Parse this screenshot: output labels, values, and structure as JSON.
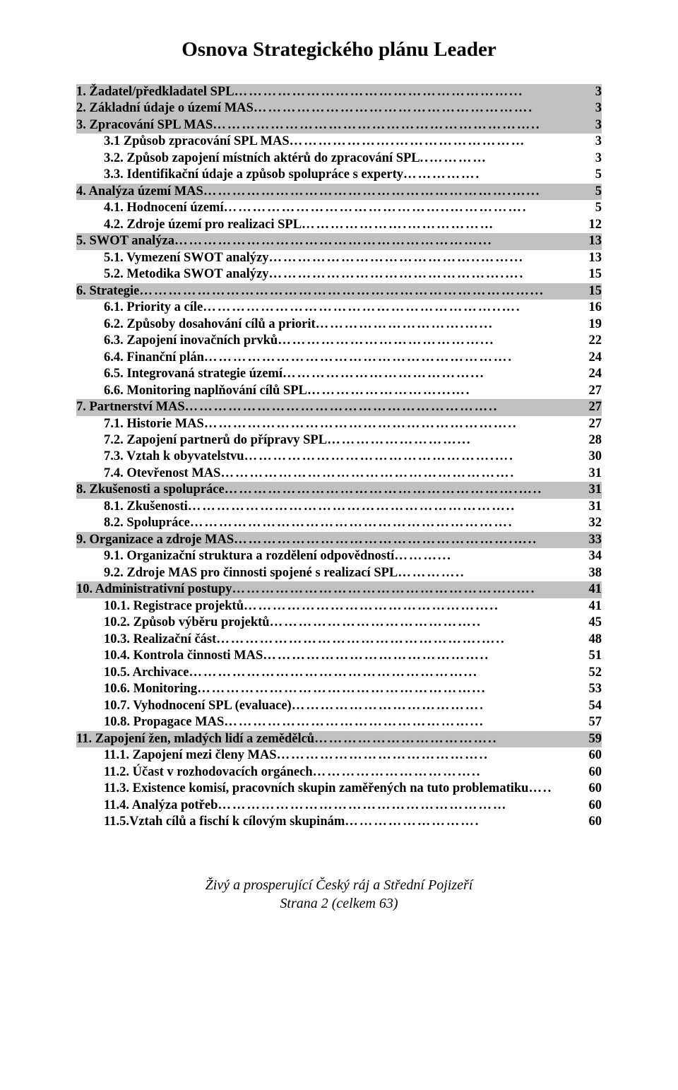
{
  "title": "Osnova Strategického plánu Leader",
  "toc": [
    {
      "level": "top",
      "label": "1. Žadatel/předkladatel SPL",
      "page": "3",
      "leader": "…………………………………………………..."
    },
    {
      "level": "top",
      "label": "2. Základní údaje o území MAS",
      "page": "3",
      "leader": "…………………………………………………."
    },
    {
      "level": "top",
      "label": "3. Zpracování SPL MAS",
      "page": "3",
      "leader": "………………………………………………………….."
    },
    {
      "level": "sub",
      "label": "3.1 Způsob zpracování SPL MAS",
      "page": "3",
      "leader": "………………….………………………"
    },
    {
      "level": "sub",
      "label": "3.2. Způsob zapojení místních aktérů do zpracování SPL",
      "page": "3",
      "leader": "..…………"
    },
    {
      "level": "sub",
      "label": "3.3. Identifikační údaje a způsob spolupráce s experty",
      "page": "5",
      "leader": "……………."
    },
    {
      "level": "top",
      "label": "4. Analýza území MAS",
      "page": "5",
      "leader": "……………………………………………………….…..."
    },
    {
      "level": "sub",
      "label": "4.1. Hodnocení území",
      "page": "5",
      "leader": "………………………………………..……………."
    },
    {
      "level": "sub",
      "label": "4.2. Zdroje území pro realizaci SPL",
      "page": "12",
      "leader": "………………….………………"
    },
    {
      "level": "top",
      "label": "5. SWOT analýza",
      "page": "13",
      "leader": "………………………………………………………..."
    },
    {
      "level": "sub",
      "label": "5.1. Vymezení SWOT analýzy",
      "page": "13",
      "leader": "……………………………………..……..."
    },
    {
      "level": "sub",
      "label": "5.2. Metodika SWOT analýzy",
      "page": "15",
      "leader": "………………………………………….…."
    },
    {
      "level": "top",
      "label": "6. Strategie",
      "page": "15",
      "leader": "………………………………………………………………………..."
    },
    {
      "level": "sub",
      "label": "6.1. Priority a cíle",
      "page": "16",
      "leader": "……………………………………………………..…."
    },
    {
      "level": "sub",
      "label": "6.2. Způsoby dosahování cílů a priorit",
      "page": "19",
      "leader": "………………………….…..."
    },
    {
      "level": "sub",
      "label": "6.3. Zapojení inovačních prvků",
      "page": "22",
      "leader": "……………………………………..."
    },
    {
      "level": "sub",
      "label": "6.4. Finanční plán",
      "page": "24",
      "leader": "………………………………………………………."
    },
    {
      "level": "sub",
      "label": "6.5. Integrovaná strategie území",
      "page": "24",
      "leader": "…………………………………..."
    },
    {
      "level": "sub",
      "label": "6.6. Monitoring naplňování cílů SPL",
      "page": "27",
      "leader": "………………………...…."
    },
    {
      "level": "top",
      "label": "7. Partnerství MAS",
      "page": "27",
      "leader": "……………………………………………………….."
    },
    {
      "level": "sub",
      "label": "7.1. Historie MAS",
      "page": "27",
      "leader": "……………………………………………………….."
    },
    {
      "level": "sub",
      "label": "7.2. Zapojení partnerů do přípravy SPL",
      "page": "28",
      "leader": "………………………..."
    },
    {
      "level": "sub",
      "label": "7.3. Vztah k obyvatelstvu",
      "page": "30",
      "leader": "…………………………………………….…."
    },
    {
      "level": "sub",
      "label": "7.4. Otevřenost MAS",
      "page": "31",
      "leader": "……………………………………………………."
    },
    {
      "level": "top",
      "label": "8. Zkušenosti a spolupráce",
      "page": "31",
      "leader": "…………………………………………………….….."
    },
    {
      "level": "sub",
      "label": "8.1. Zkušenosti",
      "page": "31",
      "leader": "………………………………………………………….."
    },
    {
      "level": "sub",
      "label": "8.2. Spolupráce",
      "page": "32",
      "leader": "…………………………………………………………."
    },
    {
      "level": "top",
      "label": "9. Organizace a zdroje MAS",
      "page": "33",
      "leader": "………………………………………………….….."
    },
    {
      "level": "sub",
      "label": "9.1. Organizační struktura a rozdělení odpovědností",
      "page": "34",
      "leader": "………..."
    },
    {
      "level": "sub",
      "label": "9.2. Zdroje MAS pro činnosti spojené s realizací SPL",
      "page": "38",
      "leader": "………….."
    },
    {
      "level": "top",
      "label": "10. Administrativní postupy",
      "page": "41",
      "leader": "…………………………………………………..…."
    },
    {
      "level": "sub",
      "label": "10.1. Registrace projektů",
      "page": "41",
      "leader": "…………………………………………….."
    },
    {
      "level": "sub",
      "label": "10.2. Způsob výběru projektů",
      "page": "45",
      "leader": "…………………………………….."
    },
    {
      "level": "sub",
      "label": "10.3. Realizační část",
      "page": "48",
      "leader": "……………………………………………….….."
    },
    {
      "level": "sub",
      "label": "10.4. Kontrola činnosti MAS",
      "page": "51",
      "leader": "……………………………………….."
    },
    {
      "level": "sub",
      "label": "10.5. Archivace",
      "page": "52",
      "leader": "…………………………………………………..."
    },
    {
      "level": "sub",
      "label": "10.6. Monitoring",
      "page": "53",
      "leader": "…………………………………………………..."
    },
    {
      "level": "sub",
      "label": "10.7. Vyhodnocení SPL (evaluace)",
      "page": "54",
      "leader": "…………………………………."
    },
    {
      "level": "sub",
      "label": "10.8. Propagace MAS",
      "page": "57",
      "leader": "……………………………………………..."
    },
    {
      "level": "top",
      "label": "11. Zapojení žen, mladých lidí a zemědělců",
      "page": "59",
      "leader": "……………………………….."
    },
    {
      "level": "sub",
      "label": "11.1. Zapojení mezi členy MAS",
      "page": "60",
      "leader": "…………………………………….."
    },
    {
      "level": "sub",
      "label": "11.2. Účast v rozhodovacích orgánech",
      "page": "60",
      "leader": "…………………………….."
    },
    {
      "level": "sub",
      "label": "11.3. Existence komisí, pracovních skupin zaměřených na tuto problematiku",
      "page": "60",
      "leader": "….."
    },
    {
      "level": "sub",
      "label": "11.4. Analýza potřeb",
      "page": "60",
      "leader": "……………………………………………………"
    },
    {
      "level": "sub",
      "label": "11.5.Vztah cílů a fischí k cílovým skupinám ",
      "page": "60",
      "leader": "………………………."
    }
  ],
  "footer_line1": "Živý a prosperující Český ráj a Střední Pojizeří",
  "footer_line2": "Strana 2 (celkem 63)"
}
